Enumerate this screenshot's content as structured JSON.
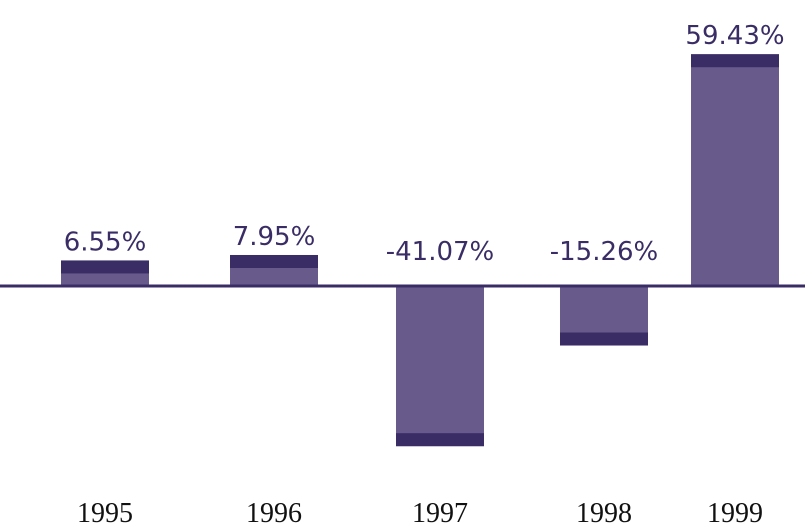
{
  "colors": {
    "bar_fill": "#685a8b",
    "bar_cap": "#3a2d66",
    "baseline": "#3a2d66",
    "label_text": "#3a2d66",
    "tick_text": "#111111",
    "background": "#ffffff"
  },
  "chart_data": {
    "type": "bar",
    "categories": [
      "1995",
      "1996",
      "1997",
      "1998",
      "1999"
    ],
    "values": [
      6.55,
      7.95,
      -41.07,
      -15.26,
      59.43
    ],
    "data_labels": [
      "6.55%",
      "7.95%",
      "-41.07%",
      "-15.26%",
      "59.43%"
    ],
    "title": "",
    "xlabel": "",
    "ylabel": "",
    "ylim": [
      -50,
      70
    ],
    "grid": false,
    "legend": "none"
  }
}
